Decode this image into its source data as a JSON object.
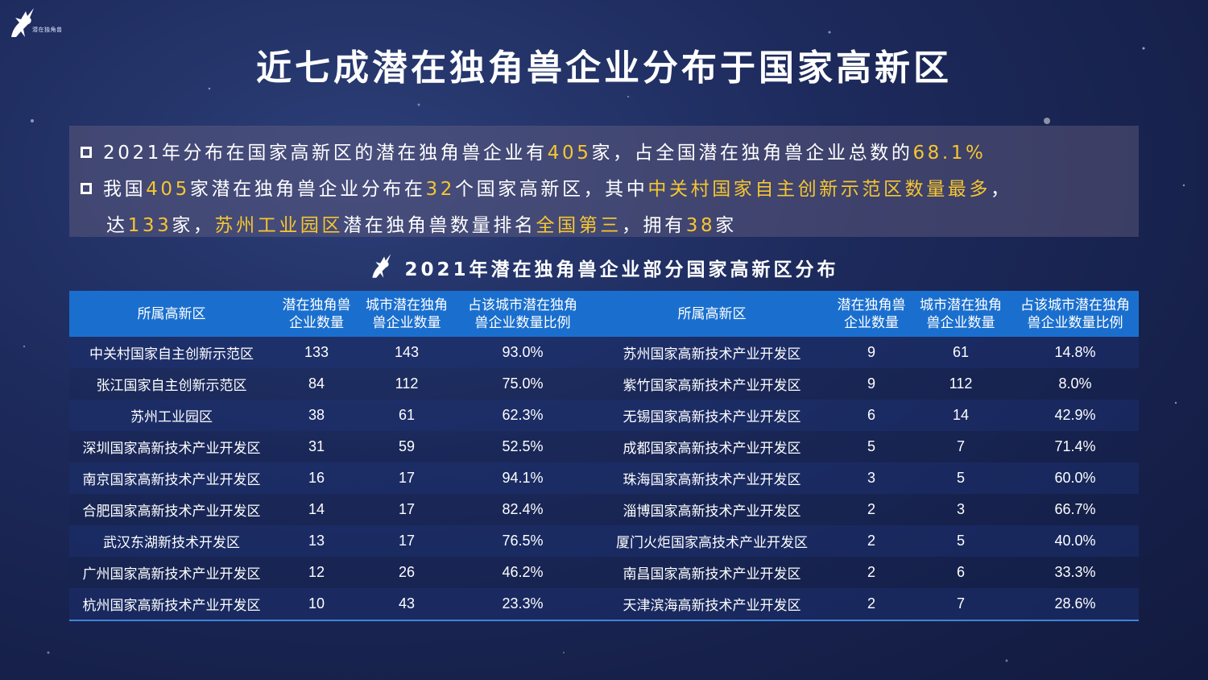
{
  "title": "近七成潜在独角兽企业分布于国家高新区",
  "summary": {
    "line1": {
      "p1": "2021年分布在国家高新区的潜在独角兽企业有",
      "h1": "405",
      "p2": "家，占全国潜在独角兽企业总数的",
      "h2": "68.1%"
    },
    "line2": {
      "p1": "我国",
      "h1": "405",
      "p2": "家潜在独角兽企业分布在",
      "h2": "32",
      "p3": "个国家高新区，其中",
      "h3": "中关村国家自主创新示范区数量最多",
      "p4": "，"
    },
    "line3": {
      "p1": "达",
      "h1": "133",
      "p2": "家，",
      "h2": "苏州工业园区",
      "p3": "潜在独角兽数量排名",
      "h3": "全国第三",
      "p4": "，拥有",
      "h4": "38",
      "p5": "家"
    }
  },
  "subtitle": "2021年潜在独角兽企业部分国家高新区分布",
  "table": {
    "headers": {
      "zone": "所属高新区",
      "count_a": "潜在独角兽",
      "count_b": "企业数量",
      "city_a": "城市潜在独角",
      "city_b": "兽企业数量",
      "ratio_a": "占该城市潜在独角",
      "ratio_b": "兽企业数量比例"
    },
    "rows": [
      {
        "l": {
          "zone": "中关村国家自主创新示范区",
          "count": "133",
          "city": "143",
          "ratio": "93.0%"
        },
        "r": {
          "zone": "苏州国家高新技术产业开发区",
          "count": "9",
          "city": "61",
          "ratio": "14.8%"
        }
      },
      {
        "l": {
          "zone": "张江国家自主创新示范区",
          "count": "84",
          "city": "112",
          "ratio": "75.0%"
        },
        "r": {
          "zone": "紫竹国家高新技术产业开发区",
          "count": "9",
          "city": "112",
          "ratio": "8.0%"
        }
      },
      {
        "l": {
          "zone": "苏州工业园区",
          "count": "38",
          "city": "61",
          "ratio": "62.3%"
        },
        "r": {
          "zone": "无锡国家高新技术产业开发区",
          "count": "6",
          "city": "14",
          "ratio": "42.9%"
        }
      },
      {
        "l": {
          "zone": "深圳国家高新技术产业开发区",
          "count": "31",
          "city": "59",
          "ratio": "52.5%"
        },
        "r": {
          "zone": "成都国家高新技术产业开发区",
          "count": "5",
          "city": "7",
          "ratio": "71.4%"
        }
      },
      {
        "l": {
          "zone": "南京国家高新技术产业开发区",
          "count": "16",
          "city": "17",
          "ratio": "94.1%"
        },
        "r": {
          "zone": "珠海国家高新技术产业开发区",
          "count": "3",
          "city": "5",
          "ratio": "60.0%"
        }
      },
      {
        "l": {
          "zone": "合肥国家高新技术产业开发区",
          "count": "14",
          "city": "17",
          "ratio": "82.4%"
        },
        "r": {
          "zone": "淄博国家高新技术产业开发区",
          "count": "2",
          "city": "3",
          "ratio": "66.7%"
        }
      },
      {
        "l": {
          "zone": "武汉东湖新技术开发区",
          "count": "13",
          "city": "17",
          "ratio": "76.5%"
        },
        "r": {
          "zone": "厦门火炬国家高技术产业开发区",
          "count": "2",
          "city": "5",
          "ratio": "40.0%"
        }
      },
      {
        "l": {
          "zone": "广州国家高新技术产业开发区",
          "count": "12",
          "city": "26",
          "ratio": "46.2%"
        },
        "r": {
          "zone": "南昌国家高新技术产业开发区",
          "count": "2",
          "city": "6",
          "ratio": "33.3%"
        }
      },
      {
        "l": {
          "zone": "杭州国家高新技术产业开发区",
          "count": "10",
          "city": "43",
          "ratio": "23.3%"
        },
        "r": {
          "zone": "天津滨海高新技术产业开发区",
          "count": "2",
          "city": "7",
          "ratio": "28.6%"
        }
      }
    ]
  },
  "colors": {
    "highlight": "#f6c630",
    "header_bg": "#1a6fce"
  },
  "icons": [
    "unicorn-logo-icon",
    "unicorn-icon",
    "checkbox-icon"
  ]
}
